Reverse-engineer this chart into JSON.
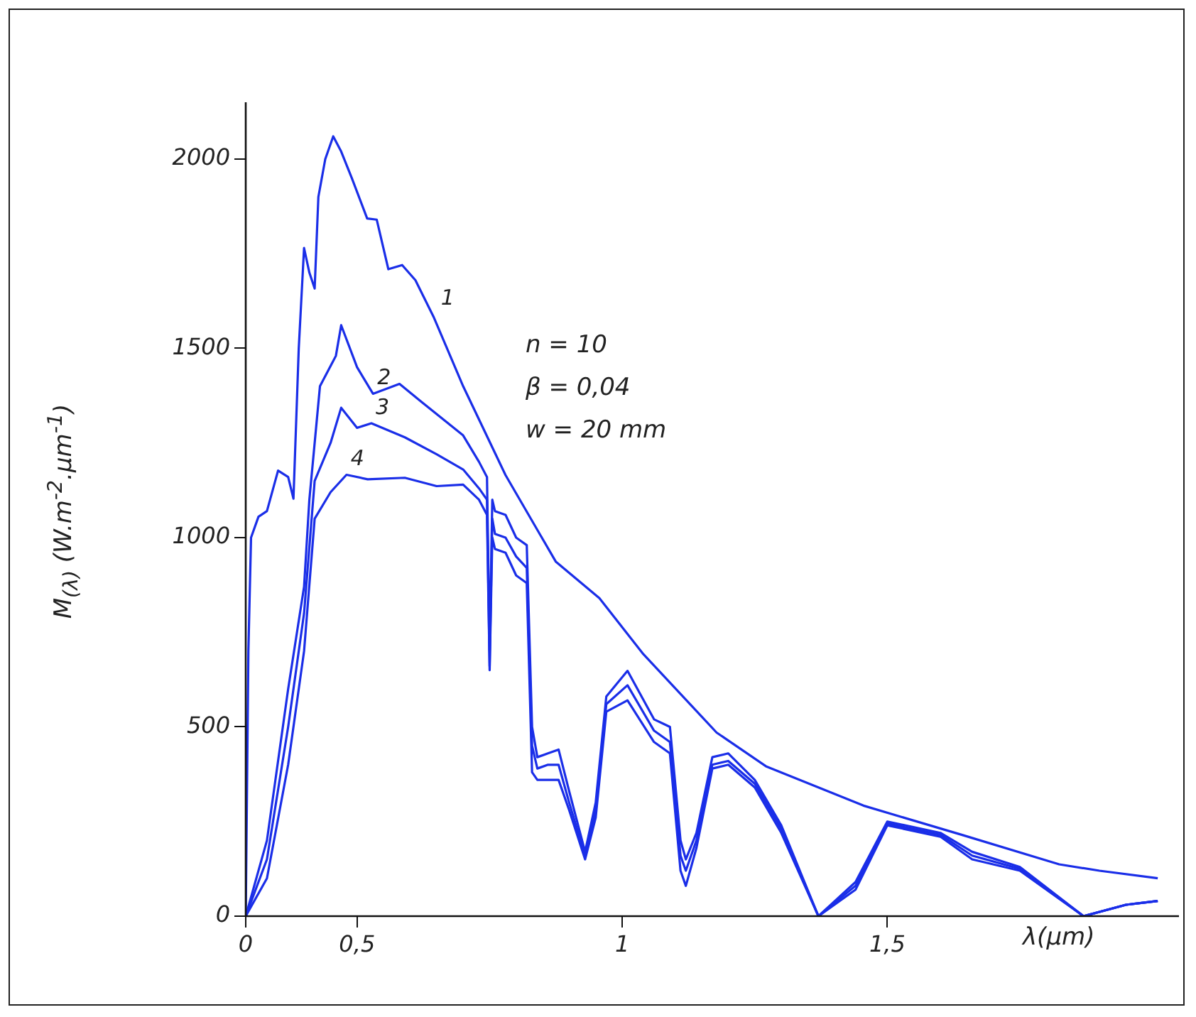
{
  "chart_data": {
    "type": "line",
    "xlabel": "λ(µm)",
    "ylabel": "M$_{(λ)}$ (W.m$^{-2}$.µm$^{-1}$)",
    "xlim": [
      0.29,
      2.05
    ],
    "xticks": [
      {
        "value": 0.29,
        "label": "0"
      },
      {
        "value": 0.5,
        "label": "0,5"
      },
      1,
      {
        "value": 1.5,
        "label": "1,5"
      }
    ],
    "ylim": [
      0,
      2150
    ],
    "yticks": [
      0,
      500,
      1000,
      1500,
      2000
    ],
    "grid": false,
    "legend": false,
    "marker": "none",
    "line_style": "solid",
    "series": [
      {
        "color": "#1a2ee8",
        "x": [
          0.29,
          0.295,
          0.3,
          0.314,
          0.33,
          0.351,
          0.37,
          0.38,
          0.39,
          0.4,
          0.41,
          0.42,
          0.427,
          0.44,
          0.455,
          0.47,
          0.49,
          0.519,
          0.537,
          0.559,
          0.585,
          0.61,
          0.644,
          0.7,
          0.78,
          0.875,
          0.957,
          1.04,
          1.178,
          1.271,
          1.455,
          1.64,
          1.824,
          1.9,
          2.01
        ],
        "values": [
          0,
          700,
          1000,
          1055,
          1070,
          1177,
          1160,
          1103,
          1500,
          1765,
          1700,
          1658,
          1900,
          2000,
          2060,
          2020,
          1950,
          1843,
          1840,
          1709,
          1720,
          1680,
          1584,
          1400,
          1165,
          936,
          840,
          692,
          485,
          396,
          292,
          215,
          137,
          120,
          100
        ]
      },
      {
        "color": "#1a2ee8",
        "x": [
          0.29,
          0.33,
          0.37,
          0.4,
          0.41,
          0.43,
          0.46,
          0.47,
          0.5,
          0.53,
          0.58,
          0.62,
          0.7,
          0.73,
          0.745,
          0.75,
          0.755,
          0.76,
          0.78,
          0.8,
          0.82,
          0.83,
          0.84,
          0.86,
          0.88,
          0.9,
          0.93,
          0.95,
          0.97,
          1.01,
          1.06,
          1.09,
          1.11,
          1.12,
          1.14,
          1.17,
          1.2,
          1.25,
          1.3,
          1.37,
          1.44,
          1.5,
          1.6,
          1.66,
          1.75,
          1.87,
          1.95,
          2.01
        ],
        "values": [
          0,
          200,
          600,
          870,
          1100,
          1400,
          1480,
          1561,
          1450,
          1380,
          1406,
          1360,
          1270,
          1200,
          1160,
          700,
          1100,
          1070,
          1060,
          1000,
          980,
          500,
          420,
          430,
          440,
          330,
          170,
          300,
          580,
          648,
          520,
          500,
          200,
          150,
          220,
          420,
          430,
          360,
          240,
          0,
          90,
          250,
          220,
          170,
          130,
          0,
          30,
          40
        ]
      },
      {
        "color": "#1a2ee8",
        "x": [
          0.29,
          0.33,
          0.37,
          0.4,
          0.42,
          0.45,
          0.47,
          0.5,
          0.527,
          0.59,
          0.65,
          0.7,
          0.73,
          0.745,
          0.75,
          0.755,
          0.76,
          0.78,
          0.8,
          0.82,
          0.83,
          0.84,
          0.86,
          0.88,
          0.9,
          0.93,
          0.95,
          0.97,
          1.01,
          1.06,
          1.09,
          1.11,
          1.12,
          1.14,
          1.17,
          1.2,
          1.25,
          1.3,
          1.37,
          1.44,
          1.5,
          1.6,
          1.66,
          1.75,
          1.87,
          1.95,
          2.01
        ],
        "values": [
          0,
          150,
          500,
          800,
          1150,
          1250,
          1343,
          1290,
          1302,
          1265,
          1220,
          1180,
          1130,
          1100,
          660,
          1050,
          1010,
          1000,
          950,
          920,
          450,
          390,
          400,
          400,
          300,
          160,
          280,
          560,
          610,
          490,
          460,
          160,
          120,
          200,
          400,
          410,
          350,
          230,
          0,
          80,
          245,
          215,
          160,
          125,
          0,
          30,
          40
        ]
      },
      {
        "color": "#1a2ee8",
        "x": [
          0.29,
          0.33,
          0.37,
          0.4,
          0.42,
          0.45,
          0.48,
          0.52,
          0.59,
          0.65,
          0.7,
          0.73,
          0.745,
          0.75,
          0.755,
          0.76,
          0.78,
          0.8,
          0.82,
          0.83,
          0.84,
          0.86,
          0.88,
          0.9,
          0.93,
          0.95,
          0.97,
          1.01,
          1.06,
          1.09,
          1.11,
          1.12,
          1.14,
          1.17,
          1.2,
          1.25,
          1.3,
          1.37,
          1.44,
          1.5,
          1.6,
          1.66,
          1.75,
          1.87,
          1.95,
          2.01
        ],
        "values": [
          0,
          100,
          400,
          700,
          1050,
          1120,
          1166,
          1154,
          1158,
          1136,
          1140,
          1100,
          1060,
          650,
          1000,
          970,
          960,
          900,
          880,
          380,
          360,
          360,
          360,
          280,
          150,
          260,
          540,
          570,
          460,
          430,
          120,
          80,
          180,
          390,
          400,
          340,
          220,
          0,
          70,
          240,
          210,
          150,
          120,
          0,
          30,
          40
        ]
      }
    ],
    "annotations": [
      {
        "text": "1",
        "x": 0.65,
        "y": 1590
      },
      {
        "text": "2",
        "x": 0.53,
        "y": 1380
      },
      {
        "text": "3",
        "x": 0.527,
        "y": 1302
      },
      {
        "text": "4",
        "x": 0.48,
        "y": 1166
      },
      "n = 10",
      "β = 0,04",
      "w = 20 mm"
    ]
  }
}
